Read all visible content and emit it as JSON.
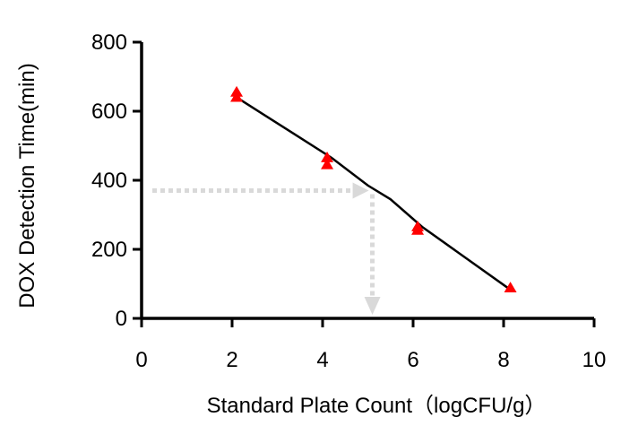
{
  "chart_data": {
    "type": "scatter",
    "xlabel": "Standard Plate Count（logCFU/g）",
    "ylabel": "DOX Detection Time(min)",
    "xlim": [
      0,
      10
    ],
    "ylim": [
      0,
      800
    ],
    "xticks": [
      "0",
      "2",
      "4",
      "6",
      "8",
      "10"
    ],
    "yticks": [
      "0",
      "200",
      "400",
      "600",
      "800"
    ],
    "grid": false,
    "legend": "none",
    "marker_color": "#ff0000",
    "line_color": "#000000",
    "guide_color": "#d9d9d9",
    "series": [
      {
        "points": [
          {
            "x": 2.1,
            "y": 655
          },
          {
            "x": 2.1,
            "y": 640
          },
          {
            "x": 4.1,
            "y": 465
          },
          {
            "x": 4.1,
            "y": 445
          },
          {
            "x": 6.1,
            "y": 265
          },
          {
            "x": 6.1,
            "y": 255
          },
          {
            "x": 8.15,
            "y": 88
          }
        ]
      }
    ],
    "trendline": {
      "points": [
        {
          "x": 2.1,
          "y": 640
        },
        {
          "x": 3.3,
          "y": 540
        },
        {
          "x": 4.2,
          "y": 465
        },
        {
          "x": 5.0,
          "y": 385
        },
        {
          "x": 5.5,
          "y": 345
        },
        {
          "x": 6.2,
          "y": 265
        },
        {
          "x": 8.15,
          "y": 83
        }
      ]
    },
    "guide": {
      "from_y": 370,
      "to_x": 5.1
    }
  }
}
